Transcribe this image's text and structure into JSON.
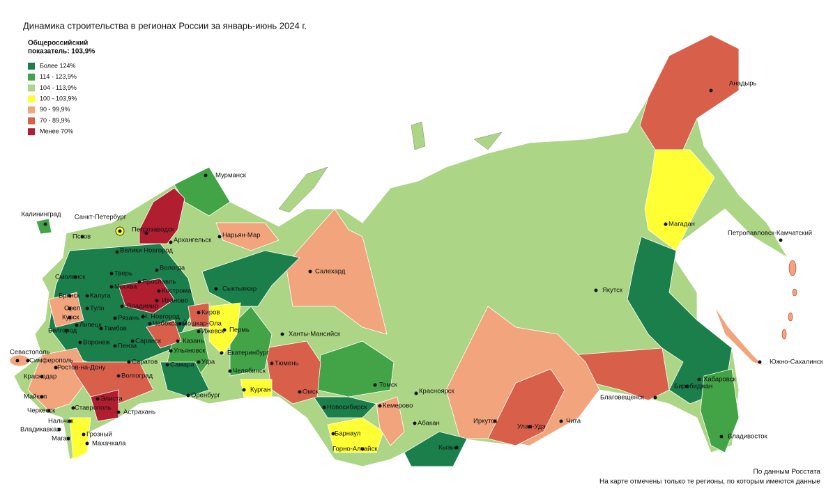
{
  "title": "Динамика строительства в регионах России за январь-июнь 2024 г.",
  "legend": {
    "title": [
      "Общероссийский",
      "показатель: 103,9%"
    ],
    "items": [
      {
        "label": "Более 124%",
        "color": "#1b7f4c"
      },
      {
        "label": "114 - 123,9%",
        "color": "#43a447"
      },
      {
        "label": "104 - 113,9%",
        "color": "#acd685"
      },
      {
        "label": "100 - 103,9%",
        "color": "#ffff33"
      },
      {
        "label": "90 - 99,9%",
        "color": "#f2a47c"
      },
      {
        "label": "70 - 89,9%",
        "color": "#d8604b"
      },
      {
        "label": "Менее 70%",
        "color": "#b01e30"
      }
    ]
  },
  "cities": [
    "Мурманск",
    "Калининград",
    "Санкт-Петербург",
    "Петрозаводск",
    "Архангельск",
    "Нарьян-Мар",
    "Псков",
    "Велики Новгород",
    "Вологда",
    "Смоленск",
    "Тверь",
    "Москва",
    "Ярославль",
    "Кострома",
    "Сыктывкар",
    "Салехард",
    "Брянск",
    "Калуга",
    "Иваново",
    "Владимир",
    "Орел",
    "Тула",
    "Киров",
    "Курск",
    "Рязань",
    "Н. Новгород",
    "Липецк",
    "Тамбов",
    "Чебоксары",
    "Йошкар-Ола",
    "Белгород",
    "Пенза",
    "Ижевск",
    "Пермь",
    "Ханты-Мансийск",
    "Воронеж",
    "Саранск",
    "Казань",
    "Ульяновск",
    "Екатеринбург",
    "Севастополь",
    "Симферополь",
    "Ростов-на-Дону",
    "Саратов",
    "Самара",
    "Уфа",
    "Челябинск",
    "Тюмень",
    "Томск",
    "Красноярск",
    "Краснодар",
    "Волгоград",
    "Курган",
    "Омск",
    "Майкоп",
    "Элиста",
    "Оренбург",
    "Новосибирск",
    "Кемерово",
    "Черкесск",
    "Ставрополь",
    "Астрахань",
    "Абакан",
    "Иркутск",
    "Улан-Удэ",
    "Чита",
    "Нальчик",
    "Владикавказ",
    "Барнаул",
    "Грозный",
    "Магас",
    "Горно-Алтайск",
    "Махачкала",
    "Кызыл",
    "Якутск",
    "Магадан",
    "Анадырь",
    "Петропавловск-Камчатский",
    "Хабаровск",
    "Биробиджан",
    "Благовещенск",
    "Владивосток",
    "Южно-Сахалинск"
  ],
  "footnotes": [
    "По данным Росстата",
    "На карте отмечены только те регионы, по которым имеются данные"
  ]
}
